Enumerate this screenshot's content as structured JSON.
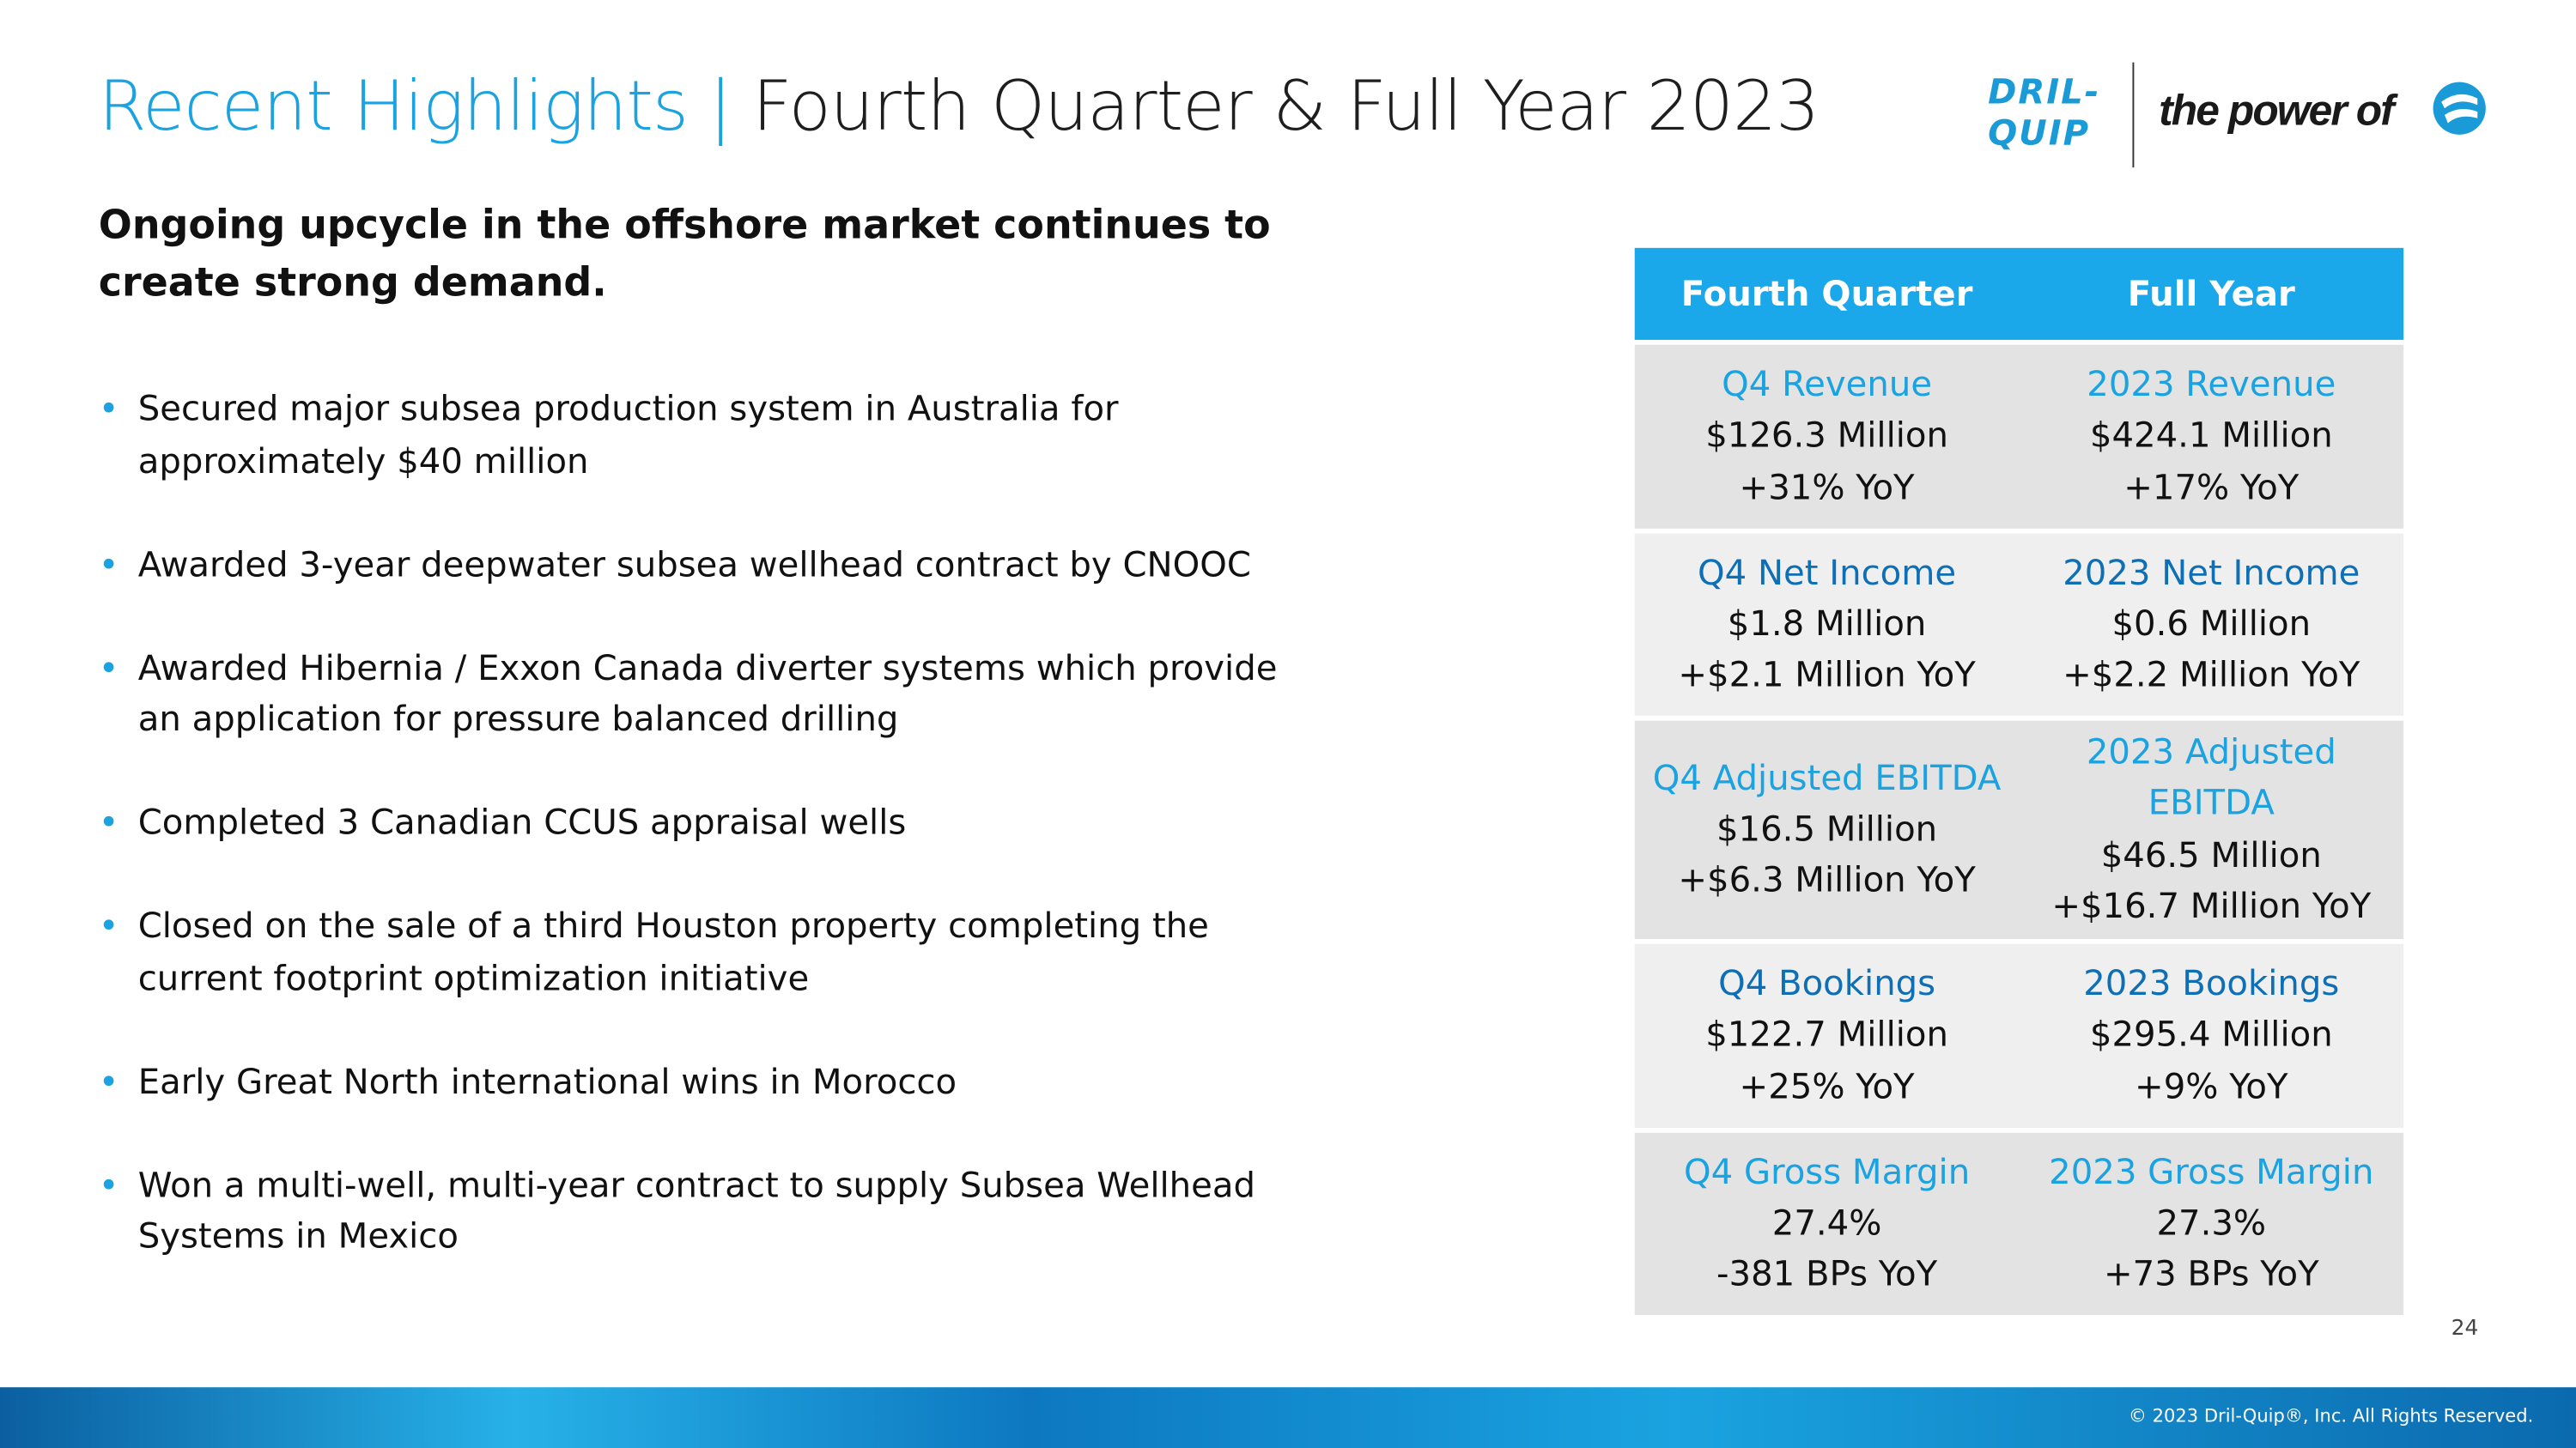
{
  "header": {
    "title_highlight": "Recent Highlights |",
    "title_main": "Fourth Quarter & Full Year 2023",
    "logo_mark": "DRIL-QUIP",
    "logo_tagline": "the power of"
  },
  "subtitle": "Ongoing upcycle in the offshore market continues to create strong demand.",
  "bullets": [
    "Secured major subsea production system in Australia for approximately $40 million",
    "Awarded 3-year deepwater subsea wellhead contract by CNOOC",
    "Awarded Hibernia / Exxon Canada diverter systems which provide an application for pressure balanced drilling",
    "Completed 3 Canadian CCUS appraisal wells",
    "Closed on the sale of a third Houston property completing the current footprint optimization initiative",
    "Early Great North international wins in Morocco",
    "Won a multi-well, multi-year contract to supply Subsea Wellhead Systems in Mexico"
  ],
  "table": {
    "headers": [
      "Fourth Quarter",
      "Full Year"
    ],
    "rows": [
      [
        {
          "label": "Q4 Revenue",
          "value": "$126.3 Million",
          "change": "+31% YoY"
        },
        {
          "label": "2023 Revenue",
          "value": "$424.1 Million",
          "change": "+17% YoY"
        }
      ],
      [
        {
          "label": "Q4 Net Income",
          "value": "$1.8 Million",
          "change": "+$2.1 Million YoY"
        },
        {
          "label": "2023 Net Income",
          "value": "$0.6 Million",
          "change": "+$2.2 Million YoY"
        }
      ],
      [
        {
          "label": "Q4 Adjusted EBITDA",
          "value": "$16.5 Million",
          "change": "+$6.3 Million YoY"
        },
        {
          "label": "2023 Adjusted EBITDA",
          "value": "$46.5 Million",
          "change": "+$16.7 Million YoY"
        }
      ],
      [
        {
          "label": "Q4 Bookings",
          "value": "$122.7 Million",
          "change": "+25% YoY"
        },
        {
          "label": "2023 Bookings",
          "value": "$295.4 Million",
          "change": "+9% YoY"
        }
      ],
      [
        {
          "label": "Q4 Gross Margin",
          "value": "27.4%",
          "change": "-381 BPs YoY"
        },
        {
          "label": "2023 Gross Margin",
          "value": "27.3%",
          "change": "+73 BPs YoY"
        }
      ]
    ]
  },
  "footer": {
    "page_number": "24",
    "copyright": "© 2023 Dril-Quip®, Inc. All Rights Reserved."
  }
}
